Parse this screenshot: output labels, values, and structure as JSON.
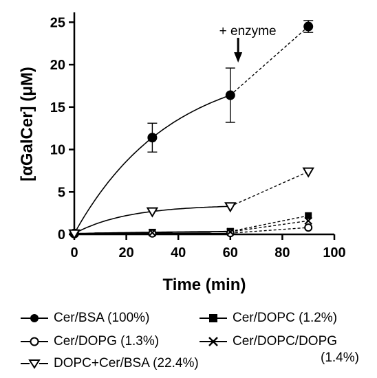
{
  "chart_data": {
    "type": "line",
    "xlabel": "Time (min)",
    "ylabel": "[αGalCer] (μM)",
    "xlim": [
      0,
      100
    ],
    "ylim": [
      0,
      26
    ],
    "xticks": [
      0,
      20,
      40,
      60,
      80,
      100
    ],
    "yticks": [
      0,
      5,
      10,
      15,
      20,
      25
    ],
    "grid": false,
    "legend_position": "bottom",
    "annotation": {
      "text": "+ enzyme",
      "x": 63
    },
    "series": [
      {
        "name": "Cer/BSA",
        "percent": "(100%)",
        "marker": "filled-circle",
        "x": [
          0,
          30,
          60,
          90
        ],
        "y": [
          0.1,
          11.4,
          16.4,
          24.5
        ],
        "err": [
          0,
          1.7,
          3.2,
          0.7
        ],
        "fit_to": 60,
        "dashed_from": 60
      },
      {
        "name": "Cer/DOPC",
        "percent": "(1.2%)",
        "marker": "filled-square",
        "x": [
          0,
          30,
          60,
          90
        ],
        "y": [
          0.1,
          0.25,
          0.35,
          2.2
        ],
        "err": [
          0,
          0,
          0,
          0
        ],
        "fit_to": 60,
        "dashed_from": 60
      },
      {
        "name": "Cer/DOPG",
        "percent": "(1.3%)",
        "marker": "open-circle",
        "x": [
          0,
          30,
          60,
          90
        ],
        "y": [
          0.1,
          0.1,
          0.15,
          0.8
        ],
        "err": [
          0,
          0,
          0,
          0
        ],
        "fit_to": 60,
        "dashed_from": 60
      },
      {
        "name": "Cer/DOPC/DOPG",
        "percent": "(1.4%)",
        "marker": "cross",
        "x": [
          0,
          30,
          60,
          90
        ],
        "y": [
          0.1,
          0.2,
          0.3,
          1.6
        ],
        "err": [
          0,
          0,
          0,
          0
        ],
        "fit_to": 60,
        "dashed_from": 60
      },
      {
        "name": "DOPC+Cer/BSA",
        "percent": "(22.4%)",
        "marker": "open-triangle-down",
        "x": [
          0,
          30,
          60,
          90
        ],
        "y": [
          0.1,
          2.7,
          3.3,
          7.4
        ],
        "err": [
          0,
          0,
          0,
          0
        ],
        "fit_to": 60,
        "dashed_from": 60
      }
    ]
  },
  "legend": {
    "row1_left": "Cer/BSA  (100%)",
    "row1_right": "Cer/DOPC  (1.2%)",
    "row2_left": "Cer/DOPG  (1.3%)",
    "row2_right": "Cer/DOPC/DOPG",
    "row2_right_suffix": "(1.4%)",
    "row3_left": "DOPC+Cer/BSA  (22.4%)"
  }
}
